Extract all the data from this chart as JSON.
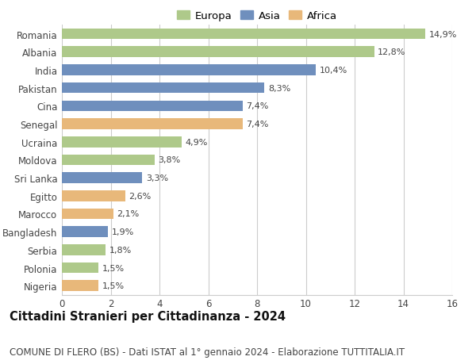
{
  "categories": [
    "Romania",
    "Albania",
    "India",
    "Pakistan",
    "Cina",
    "Senegal",
    "Ucraina",
    "Moldova",
    "Sri Lanka",
    "Egitto",
    "Marocco",
    "Bangladesh",
    "Serbia",
    "Polonia",
    "Nigeria"
  ],
  "values": [
    14.9,
    12.8,
    10.4,
    8.3,
    7.4,
    7.4,
    4.9,
    3.8,
    3.3,
    2.6,
    2.1,
    1.9,
    1.8,
    1.5,
    1.5
  ],
  "labels": [
    "14,9%",
    "12,8%",
    "10,4%",
    "8,3%",
    "7,4%",
    "7,4%",
    "4,9%",
    "3,8%",
    "3,3%",
    "2,6%",
    "2,1%",
    "1,9%",
    "1,8%",
    "1,5%",
    "1,5%"
  ],
  "continents": [
    "Europa",
    "Europa",
    "Asia",
    "Asia",
    "Asia",
    "Africa",
    "Europa",
    "Europa",
    "Asia",
    "Africa",
    "Africa",
    "Asia",
    "Europa",
    "Europa",
    "Africa"
  ],
  "colors": {
    "Europa": "#aec98a",
    "Asia": "#6f8fbd",
    "Africa": "#e8b87a"
  },
  "legend_entries": [
    "Europa",
    "Asia",
    "Africa"
  ],
  "title": "Cittadini Stranieri per Cittadinanza - 2024",
  "subtitle": "COMUNE DI FLERO (BS) - Dati ISTAT al 1° gennaio 2024 - Elaborazione TUTTITALIA.IT",
  "xlim": [
    0,
    16
  ],
  "xticks": [
    0,
    2,
    4,
    6,
    8,
    10,
    12,
    14,
    16
  ],
  "background_color": "#ffffff",
  "grid_color": "#cccccc",
  "bar_height": 0.6,
  "title_fontsize": 10.5,
  "subtitle_fontsize": 8.5,
  "label_fontsize": 8,
  "tick_fontsize": 8.5,
  "legend_fontsize": 9.5
}
